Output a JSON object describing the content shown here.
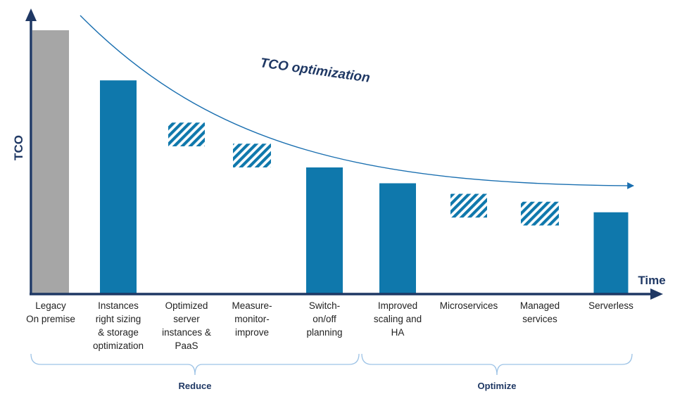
{
  "chart_data": {
    "type": "bar",
    "ylabel": "TCO",
    "xlabel": "Time",
    "curve_label": "TCO optimization",
    "categories": [
      {
        "label": [
          "Legacy",
          "On premise"
        ],
        "value": 100,
        "style": "solid-gray"
      },
      {
        "label": [
          "Instances",
          "right sizing",
          "& storage",
          "optimization"
        ],
        "value": 81,
        "style": "solid-blue"
      },
      {
        "label": [
          "Optimized",
          "server",
          "instances &",
          "PaaS"
        ],
        "value_range": [
          56,
          65
        ],
        "style": "hatched"
      },
      {
        "label": [
          "Measure-",
          "monitor-",
          "improve"
        ],
        "value_range": [
          48,
          57
        ],
        "style": "hatched"
      },
      {
        "label": [
          "Switch-",
          "on/off",
          "planning"
        ],
        "value": 48,
        "style": "solid-blue"
      },
      {
        "label": [
          "Improved",
          "scaling and",
          "HA"
        ],
        "value": 42,
        "style": "solid-blue"
      },
      {
        "label": [
          "Microservices"
        ],
        "value_range": [
          29,
          38
        ],
        "style": "hatched"
      },
      {
        "label": [
          "Managed",
          "services"
        ],
        "value_range": [
          26,
          35
        ],
        "style": "hatched"
      },
      {
        "label": [
          "Serverless"
        ],
        "value": 31,
        "style": "solid-blue"
      }
    ],
    "groups": [
      {
        "label": "Reduce",
        "from": 0,
        "to": 4
      },
      {
        "label": "Optimize",
        "from": 5,
        "to": 8
      }
    ],
    "ylim": [
      0,
      100
    ],
    "grid": false,
    "legend": "none",
    "colors": {
      "blue": "#0f78ac",
      "gray": "#a6a6a6",
      "axis": "#1f3864",
      "curve": "#1a6fb0"
    }
  }
}
